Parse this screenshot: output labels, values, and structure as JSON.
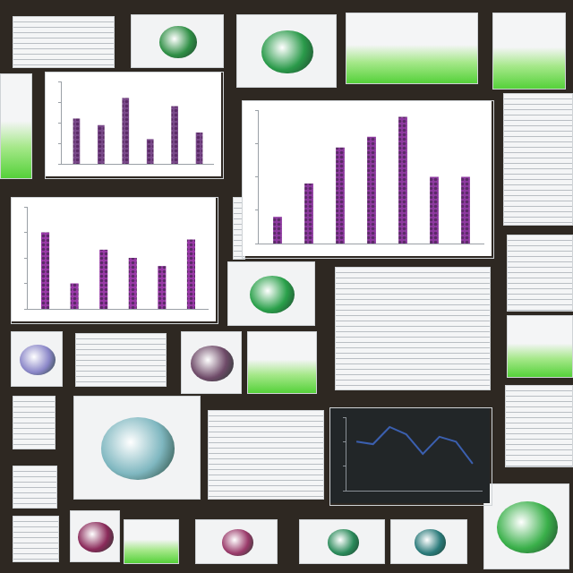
{
  "chart_data": [
    {
      "type": "bar",
      "categories": [
        null,
        null,
        null,
        null,
        null,
        null
      ],
      "values": [
        55,
        47,
        80,
        30,
        70,
        38
      ],
      "color": "#7a4a8a",
      "ylim": [
        0,
        100
      ],
      "yticks": [
        0,
        25,
        50,
        75,
        100
      ],
      "grid": false,
      "tick_labels": false
    },
    {
      "type": "bar",
      "categories": [
        null,
        null,
        null,
        null,
        null,
        null,
        null
      ],
      "values": [
        20,
        45,
        72,
        80,
        95,
        50,
        50
      ],
      "color": "#8e3aa0",
      "ylim": [
        0,
        100
      ],
      "yticks": [
        0,
        25,
        50,
        75,
        100
      ],
      "grid": false,
      "tick_labels": false
    },
    {
      "type": "bar",
      "categories": [
        null,
        null,
        null,
        null,
        null,
        null
      ],
      "values": [
        75,
        25,
        58,
        50,
        42,
        68
      ],
      "color": "#9a3aa8",
      "ylim": [
        0,
        100
      ],
      "yticks": [
        0,
        25,
        50,
        75,
        100
      ],
      "grid": false,
      "tick_labels": false
    },
    {
      "type": "line",
      "categories": [
        null,
        null,
        null,
        null,
        null,
        null,
        null,
        null
      ],
      "values": [
        40,
        38,
        52,
        46,
        30,
        44,
        40,
        22
      ],
      "color": "#3b5fae",
      "ylim": [
        0,
        60
      ],
      "yticks": [
        0,
        20,
        40,
        60
      ],
      "grid": false,
      "tick_labels": false
    }
  ]
}
